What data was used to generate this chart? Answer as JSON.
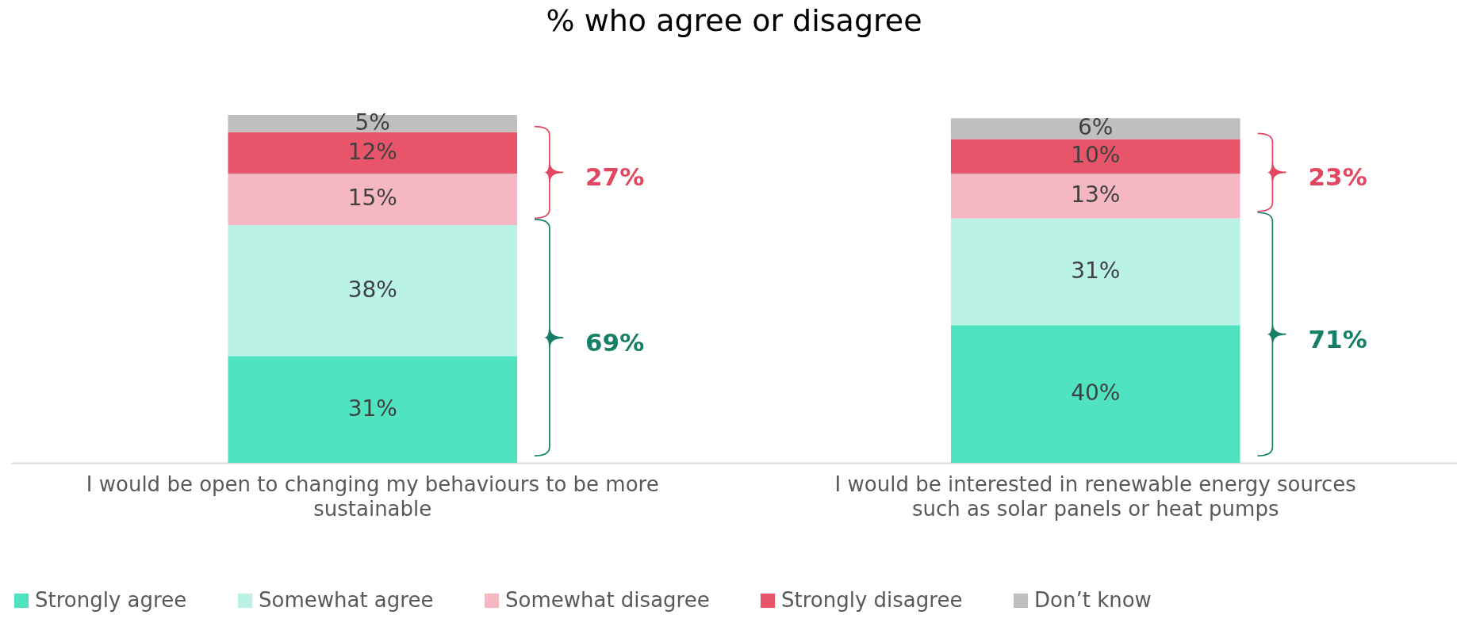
{
  "chart_data": {
    "type": "bar",
    "stacked": true,
    "title": "% who agree or disagree",
    "categories": [
      "I would be open to changing my behaviours to be more sustainable",
      "I would be interested in renewable energy sources such as solar panels or heat pumps"
    ],
    "series": [
      {
        "name": "Strongly agree",
        "color": "#50e3c2",
        "values": [
          31,
          40
        ],
        "value_labels": [
          "31%",
          "40%"
        ]
      },
      {
        "name": "Somewhat agree",
        "color": "#baf3e6",
        "values": [
          38,
          31
        ],
        "value_labels": [
          "38%",
          "31%"
        ]
      },
      {
        "name": "Somewhat disagree",
        "color": "#f5b8c2",
        "values": [
          15,
          13
        ],
        "value_labels": [
          "15%",
          "13%"
        ]
      },
      {
        "name": "Strongly disagree",
        "color": "#e8546a",
        "values": [
          12,
          10
        ],
        "value_labels": [
          "12%",
          "10%"
        ]
      },
      {
        "name": "Don’t know",
        "color": "#bfbfbf",
        "values": [
          5,
          6
        ],
        "value_labels": [
          "5%",
          "6%"
        ]
      }
    ],
    "annotations": [
      "27%",
      "69%",
      "23%",
      "71%"
    ],
    "legend": "bottom"
  }
}
